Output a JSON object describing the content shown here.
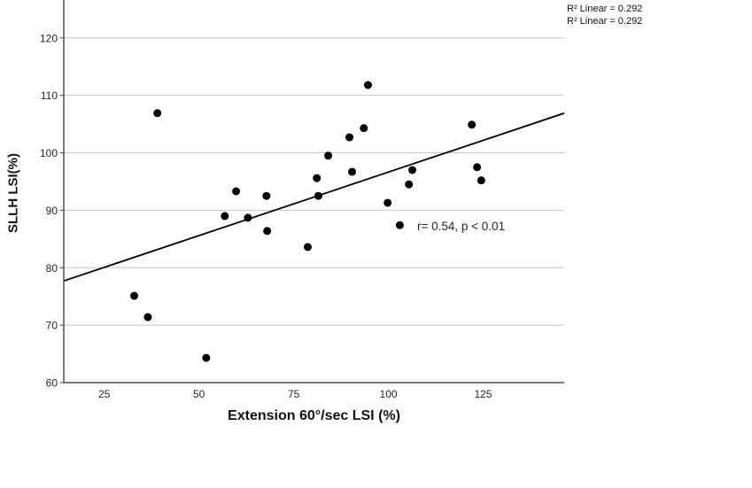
{
  "chart_data": {
    "type": "scatter",
    "title": "",
    "xlabel": "Extension 60°/sec LSI (%)",
    "ylabel": "SLLH LSI(%)",
    "annotation": "r= 0.54, p < 0.01",
    "legend_lines": [
      "R² Linear = 0.292",
      "R² Linear = 0.292"
    ],
    "x_ticks": [
      25,
      50,
      75,
      100,
      125
    ],
    "y_ticks": [
      60,
      70,
      80,
      90,
      100,
      110,
      120
    ],
    "xlim": [
      14.3,
      146.4
    ],
    "ylim": [
      60,
      126.6
    ],
    "grid": "horizontal-only",
    "legend_position": "top-right-outside",
    "points": [
      [
        32.9,
        75.1
      ],
      [
        36.5,
        71.4
      ],
      [
        39.0,
        106.9
      ],
      [
        51.9,
        64.3
      ],
      [
        56.8,
        89.0
      ],
      [
        59.8,
        93.3
      ],
      [
        62.9,
        88.7
      ],
      [
        67.8,
        92.5
      ],
      [
        68.0,
        86.4
      ],
      [
        78.7,
        83.6
      ],
      [
        81.1,
        95.6
      ],
      [
        81.5,
        92.5
      ],
      [
        84.1,
        99.5
      ],
      [
        89.7,
        102.7
      ],
      [
        90.4,
        96.7
      ],
      [
        93.5,
        104.3
      ],
      [
        94.6,
        111.8
      ],
      [
        99.8,
        91.3
      ],
      [
        103.0,
        87.4
      ],
      [
        105.4,
        94.5
      ],
      [
        106.3,
        97.0
      ],
      [
        122.0,
        104.9
      ],
      [
        123.4,
        97.5
      ],
      [
        124.5,
        95.2
      ]
    ],
    "fit_line": {
      "x1": 14.3,
      "y1": 77.7,
      "x2": 146.4,
      "y2": 106.9
    },
    "colors": {
      "point": "#000000",
      "fit_line": "#000000",
      "grid": "#c8c8c8",
      "axis": "#4d4d4d",
      "tick_text": "#262626"
    }
  }
}
